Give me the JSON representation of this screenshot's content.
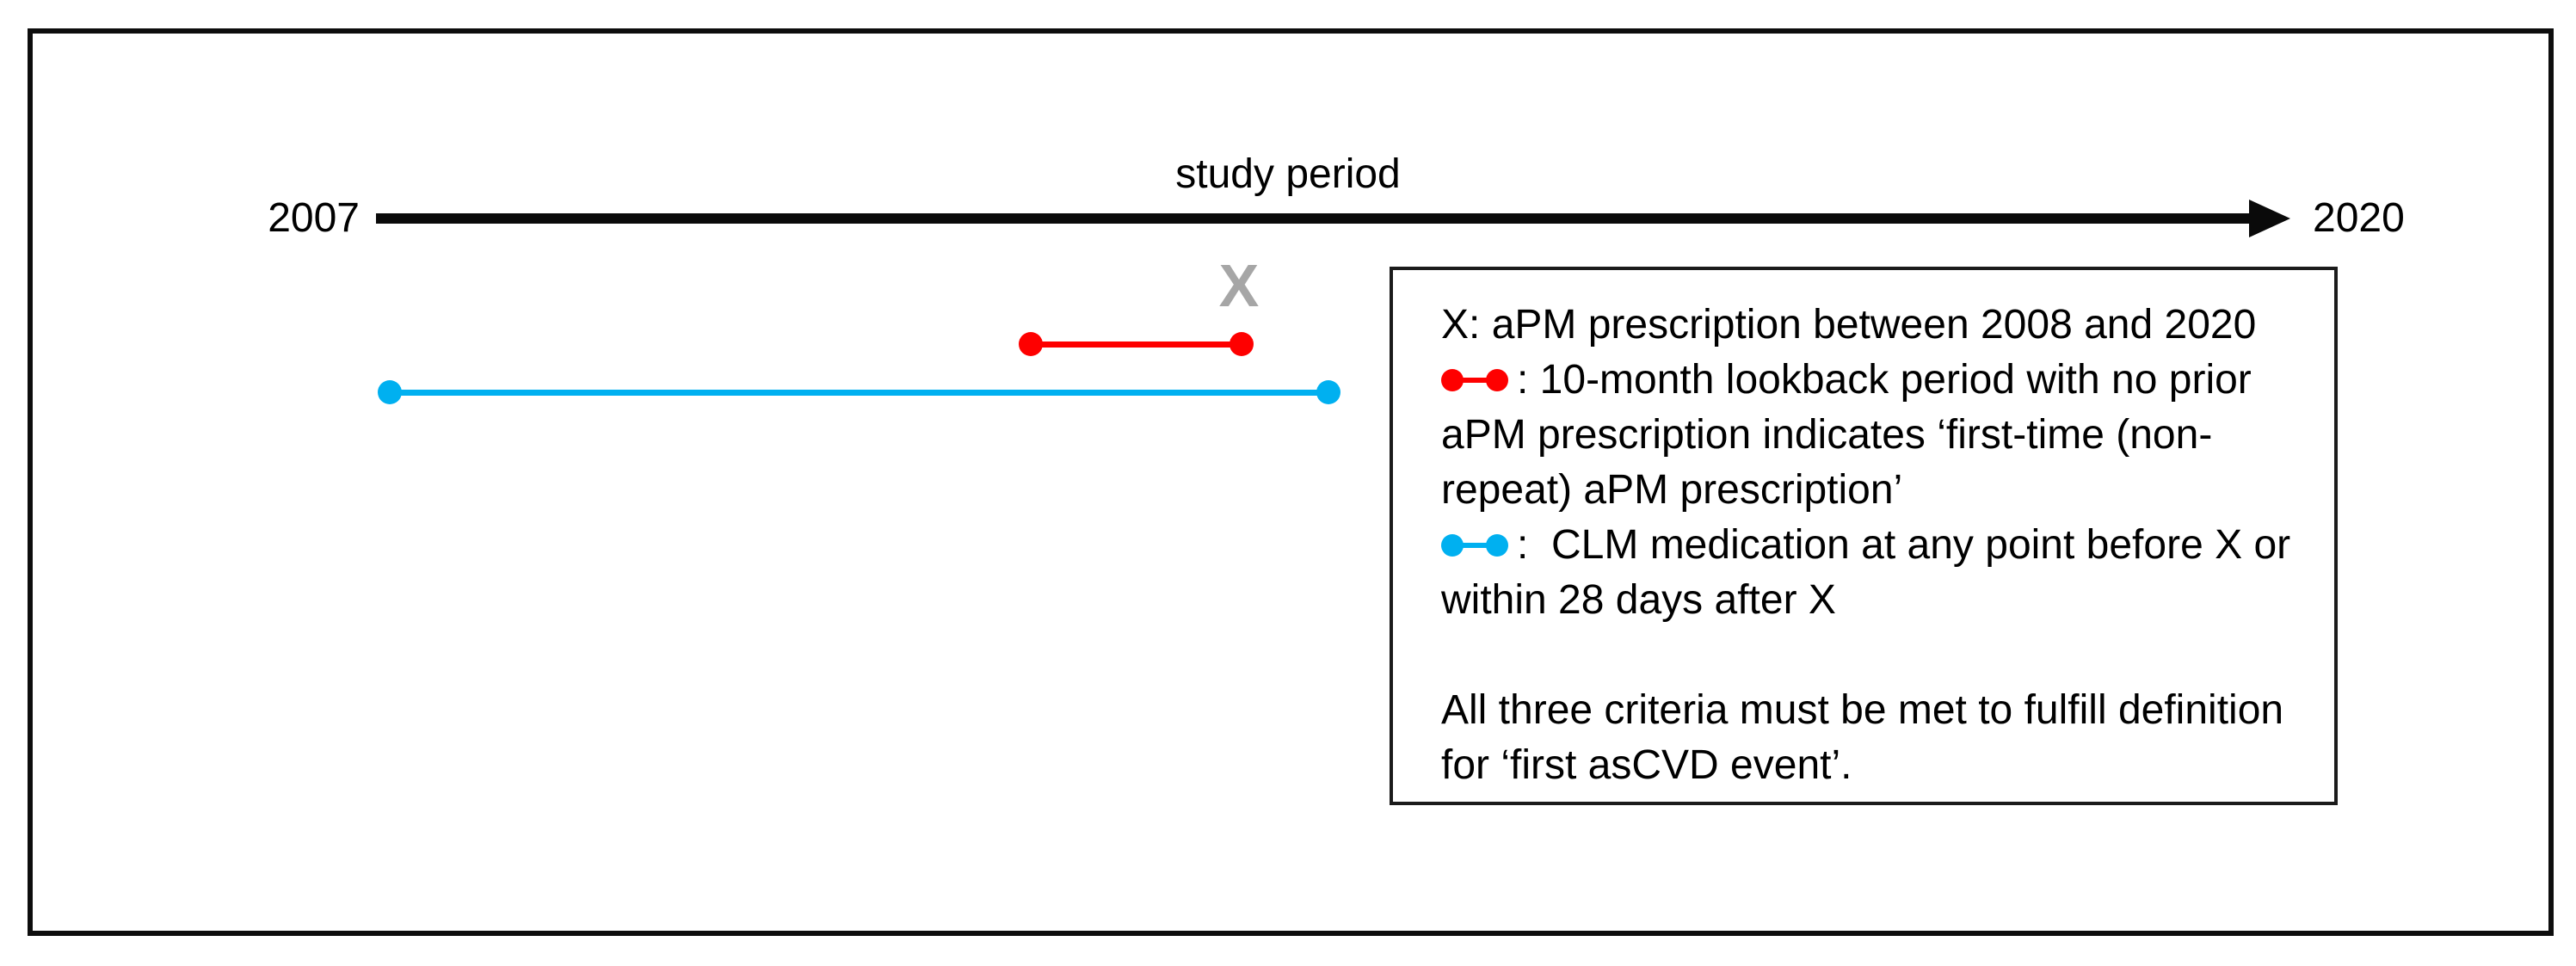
{
  "colors": {
    "red": "#fe0000",
    "cyan": "#00b0f0",
    "gray_x": "#a6a6a6",
    "black": "#0a0a0a"
  },
  "timeline": {
    "start_label": "2007",
    "end_label": "2020",
    "axis_label": "study period"
  },
  "event_marker": {
    "label": "X"
  },
  "icons": {
    "arrowhead": "right-arrowhead-icon",
    "red_range": "red-dot-line-dot-icon",
    "cyan_range": "cyan-dot-line-dot-icon"
  },
  "legend": {
    "lines": [
      {
        "symbol": null,
        "text": "X: aPM prescription between 2008 and 2020"
      },
      {
        "symbol": "red",
        "text": ": 10-month lookback period with no prior"
      },
      {
        "symbol": null,
        "text": "aPM prescription indicates ‘first-time (non-"
      },
      {
        "symbol": null,
        "text": "repeat) aPM prescription’"
      },
      {
        "symbol": "cyan",
        "text": ":  CLM medication at any point before X or"
      },
      {
        "symbol": null,
        "text": "within 28 days after X"
      },
      {
        "symbol": null,
        "text": ""
      },
      {
        "symbol": null,
        "text": "All three criteria must be met to fulfill definition"
      },
      {
        "symbol": null,
        "text": "for ‘first asCVD event’."
      }
    ]
  }
}
